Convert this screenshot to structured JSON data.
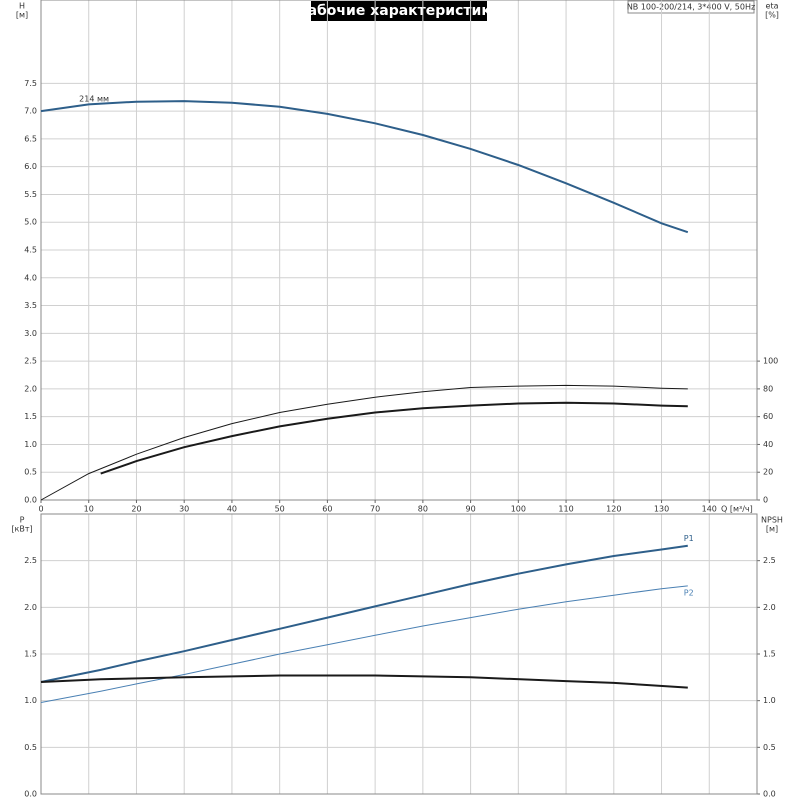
{
  "title": "Рабочие характеристики",
  "model": "NB 100-200/214, 3*400 V, 50Hz",
  "chart_data": [
    {
      "type": "line",
      "ylabel": "H",
      "ylabel_unit": "[м]",
      "y2label": "eta",
      "y2label_unit": "[%]",
      "xlabel": "Q [м³/ч]",
      "annotation": "214 мм",
      "xlim": [
        0,
        150
      ],
      "xticks": [
        0,
        10,
        20,
        30,
        40,
        50,
        60,
        70,
        80,
        90,
        100,
        110,
        120,
        130,
        140
      ],
      "ylim": [
        0,
        9
      ],
      "yticks": [
        {
          "value": 0,
          "label": "0.0"
        },
        0.5,
        {
          "value": 1,
          "label": "1.0"
        },
        1.5,
        {
          "value": 2,
          "label": "2.0"
        },
        2.5,
        {
          "value": 3,
          "label": "3.0"
        },
        3.5,
        {
          "value": 4,
          "label": "4.0"
        },
        4.5,
        {
          "value": 5,
          "label": "5.0"
        },
        5.5,
        {
          "value": 6,
          "label": "6.0"
        },
        6.5,
        {
          "value": 7,
          "label": "7.0"
        },
        7.5
      ],
      "y2lim": [
        0,
        360
      ],
      "y2ticks": [
        0,
        20,
        40,
        60,
        80,
        100
      ],
      "grid": true,
      "series": [
        {
          "color": "#2e5f8a",
          "linewidth": 2,
          "x": [
            0,
            10,
            20,
            30,
            40,
            50,
            60,
            70,
            80,
            90,
            100,
            110,
            120,
            130,
            135.5
          ],
          "values": [
            7.0,
            7.12,
            7.17,
            7.18,
            7.15,
            7.08,
            6.95,
            6.78,
            6.57,
            6.32,
            6.03,
            5.7,
            5.35,
            4.98,
            4.82
          ]
        },
        {
          "color": "#1a1a1a",
          "linewidth": 1,
          "axis": "y2",
          "x": [
            0,
            10,
            20,
            30,
            40,
            50,
            60,
            70,
            80,
            90,
            100,
            110,
            120,
            130,
            135.5
          ],
          "values": [
            0,
            19,
            33,
            45,
            55,
            63,
            69,
            74,
            78,
            81,
            82,
            82.5,
            82,
            80.5,
            80
          ]
        },
        {
          "color": "#1a1a1a",
          "linewidth": 2,
          "axis": "y2",
          "x": [
            12.5,
            20,
            30,
            40,
            50,
            60,
            70,
            80,
            90,
            100,
            110,
            120,
            130,
            135.5
          ],
          "values": [
            19,
            28,
            38,
            46,
            53,
            58.5,
            63,
            66,
            68,
            69.5,
            70,
            69.5,
            68,
            67.5
          ]
        }
      ]
    },
    {
      "type": "line",
      "ylabel": "P",
      "ylabel_unit": "[кВт]",
      "y2label": "NPSH",
      "y2label_unit": "[м]",
      "xlim": [
        0,
        150
      ],
      "ylim": [
        0,
        3
      ],
      "yticks": [
        {
          "value": 0,
          "label": "0.0"
        },
        0.5,
        {
          "value": 1,
          "label": "1.0"
        },
        1.5,
        {
          "value": 2,
          "label": "2.0"
        },
        2.5
      ],
      "y2lim": [
        0,
        3
      ],
      "y2ticks": [
        {
          "value": 0,
          "label": "0.0"
        },
        0.5,
        {
          "value": 1,
          "label": "1.0"
        },
        1.5,
        {
          "value": 2,
          "label": "2.0"
        },
        2.5
      ],
      "grid": true,
      "series": [
        {
          "name": "P1",
          "color": "#2e5f8a",
          "linewidth": 2,
          "x": [
            0,
            12.5,
            20,
            30,
            40,
            50,
            60,
            70,
            80,
            90,
            100,
            110,
            120,
            130,
            135.5
          ],
          "values": [
            1.2,
            1.33,
            1.42,
            1.53,
            1.65,
            1.77,
            1.89,
            2.01,
            2.13,
            2.25,
            2.36,
            2.46,
            2.55,
            2.62,
            2.66
          ]
        },
        {
          "name": "P2",
          "color": "#4a80b3",
          "linewidth": 1,
          "x": [
            0,
            12.5,
            20,
            30,
            40,
            50,
            60,
            70,
            80,
            90,
            100,
            110,
            120,
            130,
            135.5
          ],
          "values": [
            0.98,
            1.1,
            1.18,
            1.28,
            1.39,
            1.5,
            1.6,
            1.7,
            1.8,
            1.89,
            1.98,
            2.06,
            2.13,
            2.2,
            2.23
          ]
        },
        {
          "color": "#1a1a1a",
          "linewidth": 2,
          "axis": "y2",
          "x": [
            0,
            12.5,
            30,
            50,
            70,
            90,
            110,
            120,
            135.5
          ],
          "values": [
            1.2,
            1.23,
            1.25,
            1.27,
            1.27,
            1.25,
            1.21,
            1.19,
            1.14
          ]
        }
      ]
    }
  ]
}
